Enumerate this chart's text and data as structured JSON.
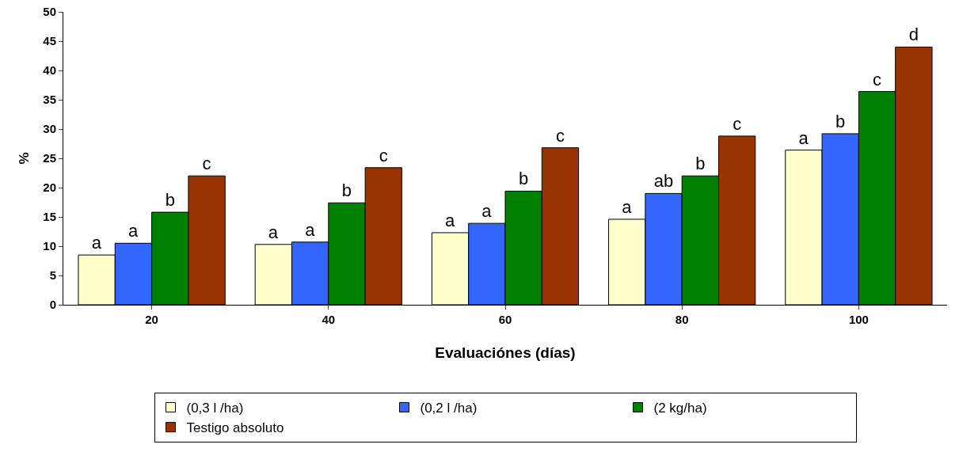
{
  "chart_data": {
    "type": "bar",
    "xlabel": "Evaluaciónes (días)",
    "ylabel": "%",
    "categories": [
      "20",
      "40",
      "60",
      "80",
      "100"
    ],
    "series": [
      {
        "name": "(0,3 l /ha)",
        "color": "#ffffcc",
        "values": [
          8.5,
          10.3,
          12.3,
          14.6,
          26.4
        ],
        "value_labels": [
          "a",
          "a",
          "a",
          "a",
          "a"
        ]
      },
      {
        "name": "(0,2 l /ha)",
        "color": "#3366ff",
        "values": [
          10.5,
          10.7,
          13.9,
          19.0,
          29.2
        ],
        "value_labels": [
          "a",
          "a",
          "a",
          "ab",
          "b"
        ]
      },
      {
        "name": "(2 kg/ha)",
        "color": "#008000",
        "values": [
          15.8,
          17.4,
          19.4,
          22.0,
          36.4
        ],
        "value_labels": [
          "b",
          "b",
          "b",
          "b",
          "c"
        ]
      },
      {
        "name": "Testigo absoluto",
        "color": "#993300",
        "values": [
          22.0,
          23.4,
          26.8,
          28.8,
          44.0
        ],
        "value_labels": [
          "c",
          "c",
          "c",
          "c",
          "d"
        ]
      }
    ],
    "ylim": [
      0,
      50
    ],
    "yticks": [
      0,
      5,
      10,
      15,
      20,
      25,
      30,
      35,
      40,
      45,
      50
    ],
    "grid": false,
    "legend": "bottom"
  }
}
